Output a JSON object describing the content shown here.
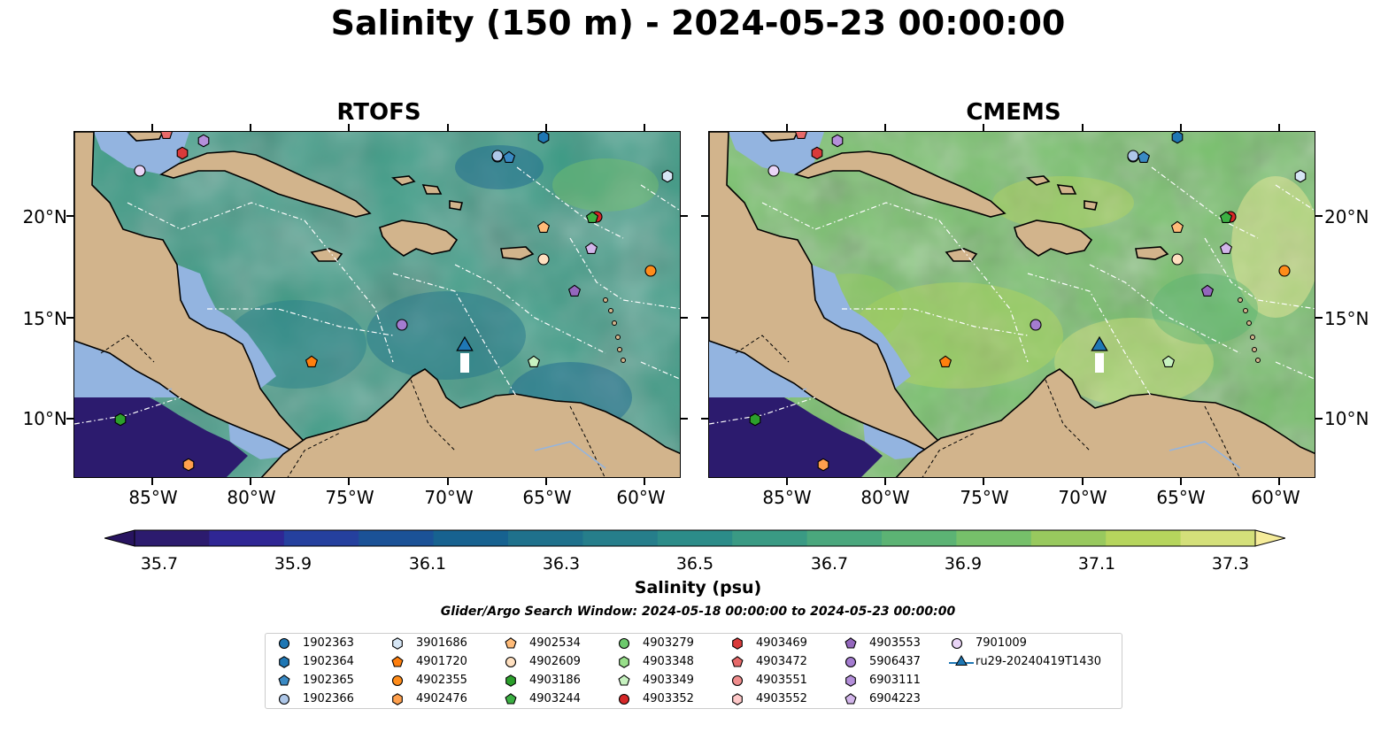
{
  "title": "Salinity (150 m) - 2024-05-23 00:00:00",
  "panels": [
    {
      "id": "rtofs",
      "title": "RTOFS"
    },
    {
      "id": "cmems",
      "title": "CMEMS"
    }
  ],
  "lat_labels": [
    "20°N",
    "15°N",
    "10°N"
  ],
  "lon_labels": [
    "85°W",
    "80°W",
    "75°W",
    "70°W",
    "65°W",
    "60°W"
  ],
  "colorbar": {
    "label": "Salinity (psu)",
    "ticks": [
      "35.7",
      "35.9",
      "36.1",
      "36.3",
      "36.5",
      "36.7",
      "36.9",
      "37.1",
      "37.3"
    ],
    "min": 35.65,
    "max": 37.35,
    "colors": [
      "#2c1b6e",
      "#2f2694",
      "#25409e",
      "#1b5297",
      "#176290",
      "#1f718c",
      "#267e8b",
      "#2c8c89",
      "#3a9a84",
      "#4aa77d",
      "#5cb374",
      "#76c06a",
      "#98c95e",
      "#b6d55d",
      "#d4e07a"
    ],
    "extend_low_color": "#281460",
    "extend_high_color": "#f5ec9a"
  },
  "search_window": "Glider/Argo Search Window: 2024-05-18 00:00:00 to 2024-05-23 00:00:00",
  "legend": [
    {
      "label": "1902363",
      "marker": "circle",
      "color": "#1f77b4"
    },
    {
      "label": "1902364",
      "marker": "hexagon",
      "color": "#1f77b4"
    },
    {
      "label": "1902365",
      "marker": "pentagon",
      "color": "#3a8ac4"
    },
    {
      "label": "1902366",
      "marker": "circle",
      "color": "#aec7e8"
    },
    {
      "label": "3901686",
      "marker": "hexagon",
      "color": "#d6e6f5"
    },
    {
      "label": "4901720",
      "marker": "pentagon",
      "color": "#ff7f0e"
    },
    {
      "label": "4902355",
      "marker": "circle",
      "color": "#ff8c1a"
    },
    {
      "label": "4902476",
      "marker": "hexagon",
      "color": "#ffa04d"
    },
    {
      "label": "4902534",
      "marker": "pentagon",
      "color": "#ffbb78"
    },
    {
      "label": "4902609",
      "marker": "circle",
      "color": "#ffe0c0"
    },
    {
      "label": "4903186",
      "marker": "hexagon",
      "color": "#2ca02c"
    },
    {
      "label": "4903244",
      "marker": "pentagon",
      "color": "#3cb043"
    },
    {
      "label": "4903279",
      "marker": "circle",
      "color": "#6cc96c"
    },
    {
      "label": "4903348",
      "marker": "hexagon",
      "color": "#98df8a"
    },
    {
      "label": "4903349",
      "marker": "pentagon",
      "color": "#c7f2c0"
    },
    {
      "label": "4903352",
      "marker": "circle",
      "color": "#d62728"
    },
    {
      "label": "4903469",
      "marker": "hexagon",
      "color": "#d93a3a"
    },
    {
      "label": "4903472",
      "marker": "pentagon",
      "color": "#e76a6a"
    },
    {
      "label": "4903551",
      "marker": "circle",
      "color": "#f08d8d"
    },
    {
      "label": "4903552",
      "marker": "hexagon",
      "color": "#ffc9c9"
    },
    {
      "label": "4903553",
      "marker": "pentagon",
      "color": "#9467bd"
    },
    {
      "label": "5906437",
      "marker": "circle",
      "color": "#a47cd0"
    },
    {
      "label": "6903111",
      "marker": "hexagon",
      "color": "#b48fda"
    },
    {
      "label": "6904223",
      "marker": "pentagon",
      "color": "#d2b5ea"
    },
    {
      "label": "7901009",
      "marker": "circle",
      "color": "#ead5f7"
    },
    {
      "label": "ru29-20240419T1430",
      "marker": "triangle-line",
      "color": "#1f77b4"
    }
  ],
  "map_colors": {
    "land": "#d2b48c",
    "shelf": "#93b4e0",
    "deep_ocean_pacific": "#2c1b6e"
  }
}
